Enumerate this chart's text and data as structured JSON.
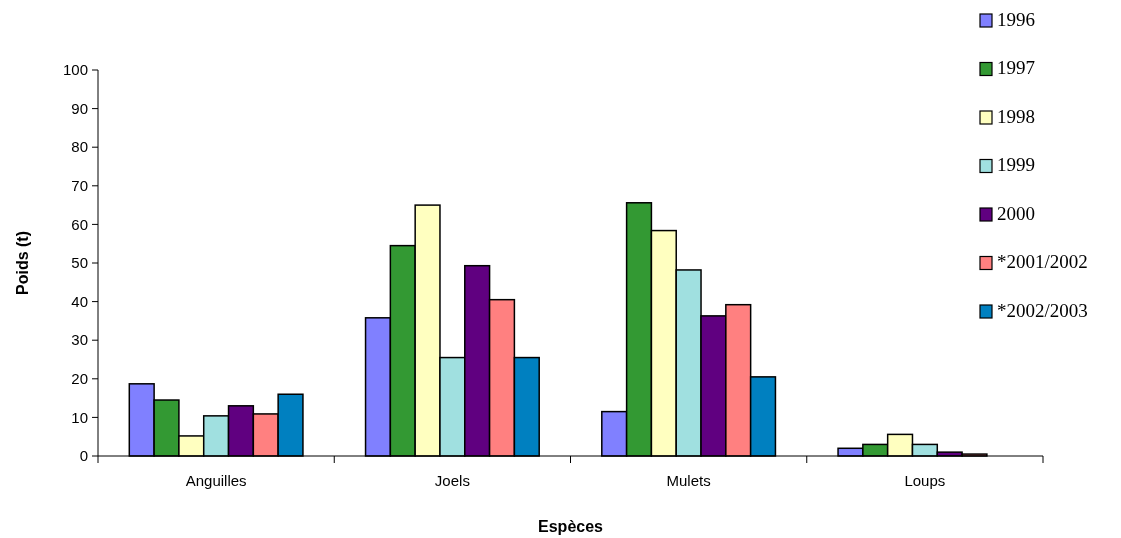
{
  "chart_data": {
    "type": "bar",
    "xlabel": "Espèces",
    "ylabel": "Poids (t)",
    "categories": [
      "Anguilles",
      "Joels",
      "Mulets",
      "Loups"
    ],
    "series": [
      {
        "name": "1996",
        "color": "#8080ff",
        "values": [
          18.7,
          35.8,
          11.5,
          2
        ]
      },
      {
        "name": "1997",
        "color": "#339933",
        "values": [
          14.5,
          54.5,
          65.6,
          3
        ]
      },
      {
        "name": "1998",
        "color": "#ffffc0",
        "values": [
          5.2,
          65,
          58.4,
          5.6
        ]
      },
      {
        "name": "1999",
        "color": "#a0e0e0",
        "values": [
          10.4,
          25.5,
          48.2,
          3
        ]
      },
      {
        "name": "2000",
        "color": "#600080",
        "values": [
          13,
          49.3,
          36.3,
          1
        ]
      },
      {
        "name": "*2001/2002",
        "color": "#ff8080",
        "values": [
          10.9,
          40.5,
          39.2,
          0.5
        ]
      },
      {
        "name": "*2002/2003",
        "color": "#0080c0",
        "values": [
          16,
          25.5,
          20.5,
          null
        ]
      }
    ],
    "ylim": [
      0,
      100
    ],
    "yticks": [
      0,
      10,
      20,
      30,
      40,
      50,
      60,
      70,
      80,
      90,
      100
    ],
    "grid": false,
    "legend": "top right"
  }
}
